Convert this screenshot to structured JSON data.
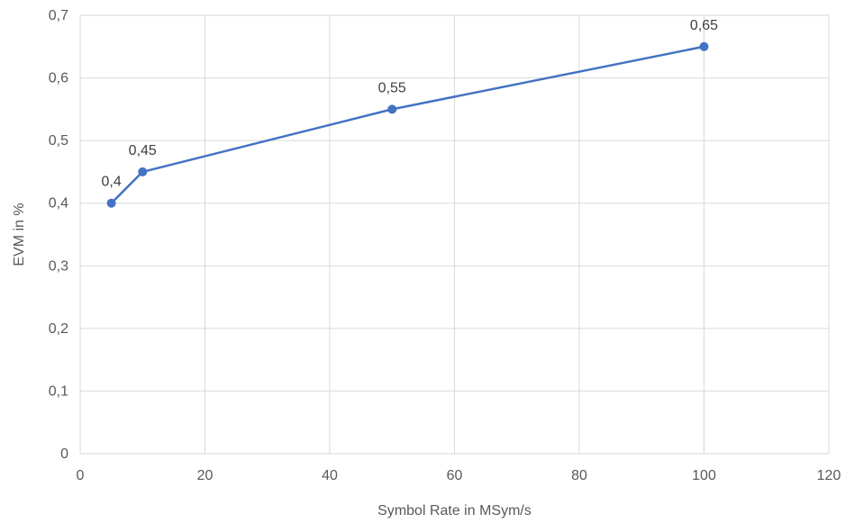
{
  "chart_data": {
    "type": "line",
    "title": "",
    "xlabel": "Symbol Rate in MSym/s",
    "ylabel": "EVM in %",
    "xlim": [
      0,
      120
    ],
    "ylim": [
      0,
      0.7
    ],
    "x_ticks": [
      0,
      20,
      40,
      60,
      80,
      100,
      120
    ],
    "y_ticks": [
      0,
      0.1,
      0.2,
      0.3,
      0.4,
      0.5,
      0.6,
      0.7
    ],
    "x_tick_labels": [
      "0",
      "20",
      "40",
      "60",
      "80",
      "100",
      "120"
    ],
    "y_tick_labels": [
      "0",
      "0,1",
      "0,2",
      "0,3",
      "0,4",
      "0,5",
      "0,6",
      "0,7"
    ],
    "grid": true,
    "legend": "none",
    "series": [
      {
        "x": [
          5,
          10,
          50,
          100
        ],
        "y": [
          0.4,
          0.45,
          0.55,
          0.65
        ],
        "labels": [
          "0,4",
          "0,45",
          "0,55",
          "0,65"
        ],
        "color": "#4472c4"
      }
    ]
  }
}
